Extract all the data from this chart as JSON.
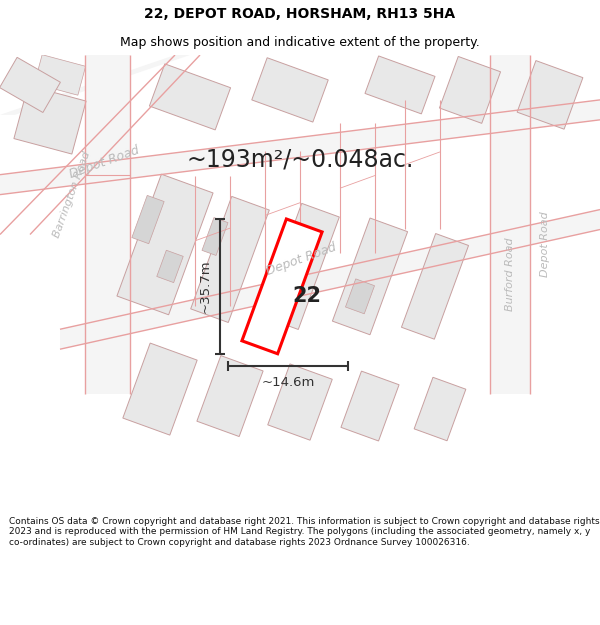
{
  "title": "22, DEPOT ROAD, HORSHAM, RH13 5HA",
  "subtitle": "Map shows position and indicative extent of the property.",
  "area_text": "~193m²/~0.048ac.",
  "property_number": "22",
  "width_label": "~14.6m",
  "height_label": "~35.7m",
  "footer_text": "Contains OS data © Crown copyright and database right 2021. This information is subject to Crown copyright and database rights 2023 and is reproduced with the permission of HM Land Registry. The polygons (including the associated geometry, namely x, y co-ordinates) are subject to Crown copyright and database rights 2023 Ordnance Survey 100026316.",
  "bg_color": "#ffffff",
  "map_bg": "#ffffff",
  "road_line_color": "#e8a0a0",
  "building_fill": "#e8e8e8",
  "building_edge": "#c8a0a0",
  "highlight_color": "#ff0000",
  "road_label_color": "#bbbbbb",
  "title_fontsize": 10,
  "subtitle_fontsize": 9,
  "area_fontsize": 17,
  "dim_color": "#333333",
  "title_color": "#000000",
  "footer_color": "#111111",
  "footer_fontsize": 6.5
}
